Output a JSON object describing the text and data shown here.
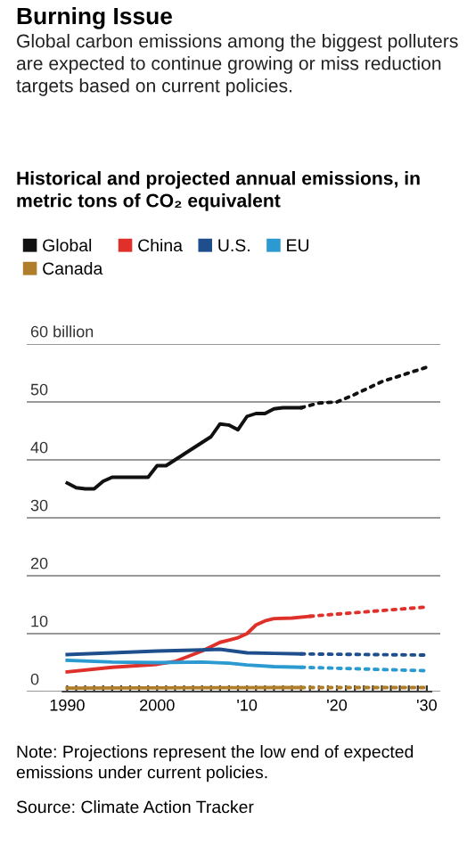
{
  "chart_data": {
    "type": "line",
    "title": "Burning Issue",
    "subtitle": "Global carbon emissions among the biggest polluters are expected to continue growing or miss reduction targets based on current policies.",
    "series": [
      {
        "name": "Global",
        "color": "#111111",
        "line_style": "solid",
        "x": [
          1990,
          1991,
          1992,
          1993,
          1994,
          1995,
          1996,
          1997,
          1998,
          1999,
          2000,
          2001,
          2002,
          2003,
          2004,
          2005,
          2006,
          2007,
          2008,
          2009,
          2010,
          2011,
          2012,
          2013,
          2014,
          2015,
          2016
        ],
        "values": [
          36,
          35.2,
          35,
          35,
          36.3,
          37,
          37,
          37,
          37,
          37,
          39,
          39,
          40,
          41,
          42,
          43,
          44,
          46.2,
          46,
          45.2,
          47.5,
          48,
          48,
          48.8,
          49,
          49,
          49
        ]
      },
      {
        "color": "#111111",
        "line_style": "dotted",
        "x": [
          2016,
          2018,
          2020,
          2022,
          2025,
          2028,
          2030
        ],
        "values": [
          49,
          49.8,
          50,
          51.3,
          53.5,
          55,
          56
        ]
      },
      {
        "name": "China",
        "color": "#e0302a",
        "line_style": "solid",
        "x": [
          1990,
          1995,
          2000,
          2002,
          2005,
          2007,
          2009,
          2010,
          2011,
          2012,
          2013,
          2015,
          2017
        ],
        "values": [
          3.4,
          4.2,
          4.7,
          5.2,
          7,
          8.5,
          9.3,
          10,
          11.5,
          12.2,
          12.6,
          12.7,
          13
        ]
      },
      {
        "color": "#e0302a",
        "line_style": "dotted",
        "x": [
          2017,
          2030
        ],
        "values": [
          13,
          14.6
        ]
      },
      {
        "name": "U.S.",
        "color": "#1f4e8c",
        "line_style": "solid",
        "x": [
          1990,
          1995,
          2000,
          2005,
          2007,
          2010,
          2013,
          2016
        ],
        "values": [
          6.4,
          6.7,
          7,
          7.2,
          7.3,
          6.7,
          6.6,
          6.5
        ]
      },
      {
        "color": "#1f4e8c",
        "line_style": "dotted",
        "x": [
          2016,
          2030
        ],
        "values": [
          6.5,
          6.3
        ]
      },
      {
        "name": "EU",
        "color": "#2a9ad0",
        "line_style": "solid",
        "x": [
          1990,
          1995,
          2000,
          2005,
          2008,
          2010,
          2013,
          2016
        ],
        "values": [
          5.4,
          5.1,
          5,
          5.1,
          4.9,
          4.6,
          4.3,
          4.2
        ]
      },
      {
        "color": "#2a9ad0",
        "line_style": "dotted",
        "x": [
          2016,
          2030
        ],
        "values": [
          4.2,
          3.6
        ]
      },
      {
        "name": "Canada",
        "color": "#b07d2a",
        "line_style": "solid",
        "x": [
          1990,
          2016
        ],
        "values": [
          0.6,
          0.7
        ]
      },
      {
        "color": "#b07d2a",
        "line_style": "dotted",
        "x": [
          2016,
          2030
        ],
        "values": [
          0.7,
          0.7
        ]
      }
    ],
    "xlim": [
      1985.5,
      2031.5
    ],
    "xticks": [
      {
        "value": 1990,
        "label": "1990"
      },
      {
        "value": 1991,
        "label": null
      },
      {
        "value": 1992,
        "label": null
      },
      {
        "value": 1993,
        "label": null
      },
      {
        "value": 1994,
        "label": null
      },
      {
        "value": 1995,
        "label": null
      },
      {
        "value": 1996,
        "label": null
      },
      {
        "value": 1997,
        "label": null
      },
      {
        "value": 1998,
        "label": null
      },
      {
        "value": 1999,
        "label": null
      },
      {
        "value": 2000,
        "label": "2000"
      },
      {
        "value": 2001,
        "label": null
      },
      {
        "value": 2002,
        "label": null
      },
      {
        "value": 2003,
        "label": null
      },
      {
        "value": 2004,
        "label": null
      },
      {
        "value": 2005,
        "label": null
      },
      {
        "value": 2006,
        "label": null
      },
      {
        "value": 2007,
        "label": null
      },
      {
        "value": 2008,
        "label": null
      },
      {
        "value": 2009,
        "label": null
      },
      {
        "value": 2010,
        "label": "'10"
      },
      {
        "value": 2011,
        "label": null
      },
      {
        "value": 2012,
        "label": null
      },
      {
        "value": 2013,
        "label": null
      },
      {
        "value": 2014,
        "label": null
      },
      {
        "value": 2015,
        "label": null
      },
      {
        "value": 2016,
        "label": null
      },
      {
        "value": 2017,
        "label": null
      },
      {
        "value": 2018,
        "label": null
      },
      {
        "value": 2019,
        "label": null
      },
      {
        "value": 2020,
        "label": "'20"
      },
      {
        "value": 2021,
        "label": null
      },
      {
        "value": 2022,
        "label": null
      },
      {
        "value": 2023,
        "label": null
      },
      {
        "value": 2024,
        "label": null
      },
      {
        "value": 2025,
        "label": null
      },
      {
        "value": 2026,
        "label": null
      },
      {
        "value": 2027,
        "label": null
      },
      {
        "value": 2028,
        "label": null
      },
      {
        "value": 2029,
        "label": null
      },
      {
        "value": 2030,
        "label": "'30"
      }
    ],
    "ylim": [
      0,
      60
    ],
    "yticks": [
      0,
      10,
      20,
      30,
      40,
      50,
      {
        "value": 60,
        "label": "60 billion"
      }
    ],
    "grid": "y",
    "legend": "top left",
    "annotations": [
      "Historical and projected annual emissions, in metric tons of CO₂ equivalent",
      "Note: Projections represent the low end of expected emissions under current policies.",
      "Source: Climate Action Tracker"
    ]
  }
}
